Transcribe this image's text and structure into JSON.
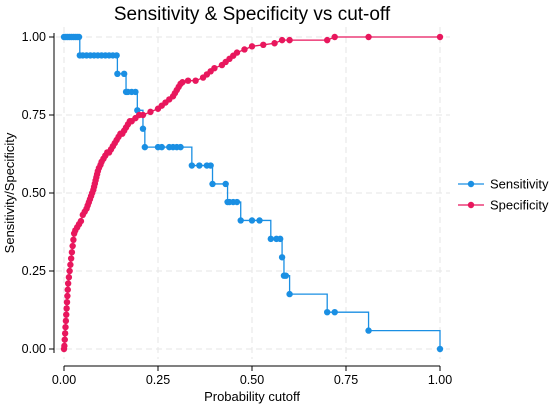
{
  "chart_data": {
    "type": "line",
    "title": "Sensitivity & Specificity vs cut-off",
    "xlabel": "Probability cutoff",
    "ylabel": "Sensitivity/Specificity",
    "xlim": [
      0,
      1
    ],
    "ylim": [
      0,
      1
    ],
    "xticks": [
      "0.00",
      "0.25",
      "0.50",
      "0.75",
      "1.00"
    ],
    "yticks": [
      "0.00",
      "0.25",
      "0.50",
      "0.75",
      "1.00"
    ],
    "grid": true,
    "legend_position": "right",
    "series": [
      {
        "name": "Sensitivity",
        "color": "#1a8fe3",
        "step": true,
        "points": [
          [
            0.0,
            1.0
          ],
          [
            0.005,
            1.0
          ],
          [
            0.01,
            1.0
          ],
          [
            0.015,
            1.0
          ],
          [
            0.02,
            1.0
          ],
          [
            0.025,
            1.0
          ],
          [
            0.03,
            1.0
          ],
          [
            0.035,
            1.0
          ],
          [
            0.04,
            1.0
          ],
          [
            0.042,
            0.941
          ],
          [
            0.05,
            0.941
          ],
          [
            0.06,
            0.941
          ],
          [
            0.07,
            0.941
          ],
          [
            0.08,
            0.941
          ],
          [
            0.09,
            0.941
          ],
          [
            0.1,
            0.941
          ],
          [
            0.11,
            0.941
          ],
          [
            0.12,
            0.941
          ],
          [
            0.13,
            0.941
          ],
          [
            0.14,
            0.941
          ],
          [
            0.142,
            0.882
          ],
          [
            0.16,
            0.882
          ],
          [
            0.165,
            0.824
          ],
          [
            0.17,
            0.824
          ],
          [
            0.18,
            0.824
          ],
          [
            0.19,
            0.824
          ],
          [
            0.195,
            0.765
          ],
          [
            0.21,
            0.706
          ],
          [
            0.215,
            0.647
          ],
          [
            0.25,
            0.647
          ],
          [
            0.26,
            0.647
          ],
          [
            0.28,
            0.647
          ],
          [
            0.29,
            0.647
          ],
          [
            0.3,
            0.647
          ],
          [
            0.31,
            0.647
          ],
          [
            0.34,
            0.588
          ],
          [
            0.36,
            0.588
          ],
          [
            0.38,
            0.588
          ],
          [
            0.39,
            0.588
          ],
          [
            0.395,
            0.529
          ],
          [
            0.43,
            0.529
          ],
          [
            0.435,
            0.471
          ],
          [
            0.44,
            0.471
          ],
          [
            0.45,
            0.471
          ],
          [
            0.46,
            0.471
          ],
          [
            0.47,
            0.412
          ],
          [
            0.5,
            0.412
          ],
          [
            0.52,
            0.412
          ],
          [
            0.55,
            0.353
          ],
          [
            0.565,
            0.353
          ],
          [
            0.575,
            0.353
          ],
          [
            0.58,
            0.294
          ],
          [
            0.585,
            0.235
          ],
          [
            0.59,
            0.235
          ],
          [
            0.6,
            0.176
          ],
          [
            0.7,
            0.118
          ],
          [
            0.72,
            0.118
          ],
          [
            0.81,
            0.059
          ],
          [
            1.0,
            0.0
          ]
        ]
      },
      {
        "name": "Specificity",
        "color": "#e8175d",
        "step": false,
        "points": [
          [
            0.0,
            0.0
          ],
          [
            0.001,
            0.01
          ],
          [
            0.002,
            0.03
          ],
          [
            0.003,
            0.05
          ],
          [
            0.004,
            0.07
          ],
          [
            0.005,
            0.09
          ],
          [
            0.006,
            0.11
          ],
          [
            0.007,
            0.13
          ],
          [
            0.008,
            0.15
          ],
          [
            0.009,
            0.17
          ],
          [
            0.01,
            0.19
          ],
          [
            0.011,
            0.21
          ],
          [
            0.013,
            0.23
          ],
          [
            0.015,
            0.25
          ],
          [
            0.017,
            0.27
          ],
          [
            0.019,
            0.29
          ],
          [
            0.021,
            0.31
          ],
          [
            0.023,
            0.33
          ],
          [
            0.025,
            0.35
          ],
          [
            0.027,
            0.37
          ],
          [
            0.03,
            0.38
          ],
          [
            0.035,
            0.39
          ],
          [
            0.04,
            0.4
          ],
          [
            0.045,
            0.41
          ],
          [
            0.05,
            0.43
          ],
          [
            0.055,
            0.44
          ],
          [
            0.06,
            0.45
          ],
          [
            0.063,
            0.46
          ],
          [
            0.066,
            0.47
          ],
          [
            0.069,
            0.48
          ],
          [
            0.072,
            0.49
          ],
          [
            0.075,
            0.5
          ],
          [
            0.078,
            0.51
          ],
          [
            0.08,
            0.52
          ],
          [
            0.082,
            0.53
          ],
          [
            0.084,
            0.54
          ],
          [
            0.086,
            0.55
          ],
          [
            0.088,
            0.56
          ],
          [
            0.09,
            0.57
          ],
          [
            0.093,
            0.58
          ],
          [
            0.097,
            0.59
          ],
          [
            0.1,
            0.6
          ],
          [
            0.105,
            0.61
          ],
          [
            0.11,
            0.62
          ],
          [
            0.115,
            0.63
          ],
          [
            0.12,
            0.63
          ],
          [
            0.125,
            0.64
          ],
          [
            0.13,
            0.65
          ],
          [
            0.135,
            0.66
          ],
          [
            0.14,
            0.67
          ],
          [
            0.145,
            0.68
          ],
          [
            0.15,
            0.69
          ],
          [
            0.155,
            0.69
          ],
          [
            0.16,
            0.7
          ],
          [
            0.165,
            0.71
          ],
          [
            0.17,
            0.72
          ],
          [
            0.175,
            0.73
          ],
          [
            0.18,
            0.73
          ],
          [
            0.19,
            0.74
          ],
          [
            0.2,
            0.75
          ],
          [
            0.21,
            0.75
          ],
          [
            0.23,
            0.76
          ],
          [
            0.25,
            0.77
          ],
          [
            0.26,
            0.78
          ],
          [
            0.27,
            0.79
          ],
          [
            0.28,
            0.8
          ],
          [
            0.29,
            0.81
          ],
          [
            0.295,
            0.82
          ],
          [
            0.3,
            0.83
          ],
          [
            0.305,
            0.84
          ],
          [
            0.31,
            0.85
          ],
          [
            0.315,
            0.855
          ],
          [
            0.33,
            0.86
          ],
          [
            0.35,
            0.86
          ],
          [
            0.37,
            0.87
          ],
          [
            0.38,
            0.88
          ],
          [
            0.39,
            0.89
          ],
          [
            0.4,
            0.9
          ],
          [
            0.42,
            0.91
          ],
          [
            0.43,
            0.92
          ],
          [
            0.44,
            0.93
          ],
          [
            0.45,
            0.94
          ],
          [
            0.46,
            0.95
          ],
          [
            0.48,
            0.96
          ],
          [
            0.5,
            0.97
          ],
          [
            0.53,
            0.975
          ],
          [
            0.56,
            0.98
          ],
          [
            0.58,
            0.99
          ],
          [
            0.6,
            0.99
          ],
          [
            0.7,
            0.99
          ],
          [
            0.72,
            1.0
          ],
          [
            0.81,
            1.0
          ],
          [
            1.0,
            1.0
          ]
        ]
      }
    ]
  }
}
